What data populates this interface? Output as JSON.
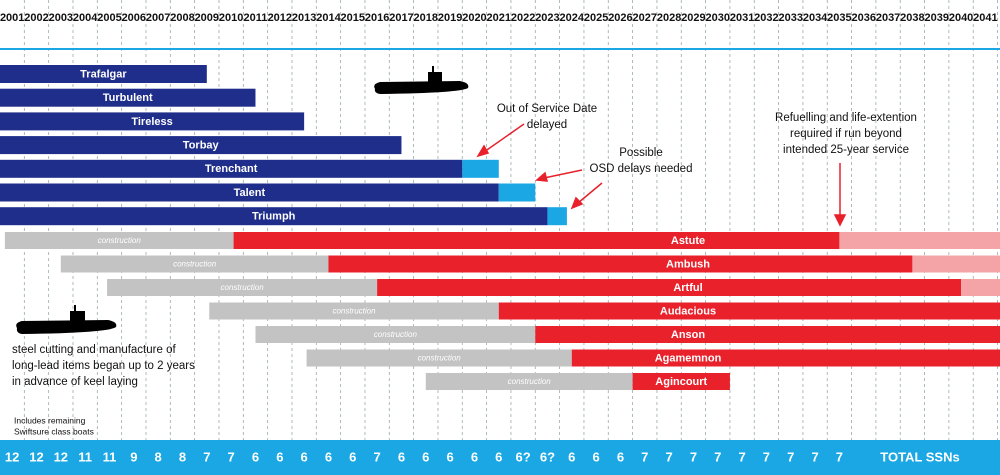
{
  "chart_data": {
    "type": "timeline",
    "xlim": [
      2000.5,
      2041.6
    ],
    "xticks": [
      2001,
      2002,
      2003,
      2004,
      2005,
      2006,
      2007,
      2008,
      2009,
      2010,
      2011,
      2012,
      2013,
      2014,
      2015,
      2016,
      2017,
      2018,
      2019,
      2020,
      2021,
      2022,
      2023,
      2024,
      2025,
      2026,
      2027,
      2028,
      2029,
      2030,
      2031,
      2032,
      2033,
      2034,
      2035,
      2036,
      2037,
      2038,
      2039,
      2040,
      2041
    ],
    "grid": true,
    "colors": {
      "in_service": "#1f2e8a",
      "delay": "#1aa7e4",
      "construction": "#c3c3c3",
      "service": "#e8212b",
      "extension": "#f4a3a6",
      "totals_band": "#1aa7e4"
    },
    "in_service": [
      {
        "name": "Trafalgar",
        "start": 2000.5,
        "end": 2009
      },
      {
        "name": "Turbulent",
        "start": 2000.5,
        "end": 2011
      },
      {
        "name": "Tireless",
        "start": 2000.5,
        "end": 2013
      },
      {
        "name": "Torbay",
        "start": 2000.5,
        "end": 2017
      },
      {
        "name": "Trenchant",
        "start": 2000.5,
        "end": 2019.5,
        "delay_end": 2021
      },
      {
        "name": "Talent",
        "start": 2000.5,
        "end": 2021,
        "delay_end": 2022.5
      },
      {
        "name": "Triumph",
        "start": 2000.5,
        "end": 2023,
        "delay_end": 2023.8
      }
    ],
    "construction_label": "construction",
    "new_boats": [
      {
        "name": "Astute",
        "construction_start": 2000.7,
        "service_start": 2010.1,
        "service_end": 2035,
        "extension_end": 2041.6
      },
      {
        "name": "Ambush",
        "construction_start": 2003,
        "service_start": 2014,
        "service_end": 2038,
        "extension_end": 2041.6
      },
      {
        "name": "Artful",
        "construction_start": 2004.9,
        "service_start": 2016,
        "service_end": 2040,
        "extension_end": 2041.6
      },
      {
        "name": "Audacious",
        "construction_start": 2009.1,
        "service_start": 2021,
        "service_end": 2041.6
      },
      {
        "name": "Anson",
        "construction_start": 2011,
        "service_start": 2022.5,
        "service_end": 2041.6
      },
      {
        "name": "Agamemnon",
        "construction_start": 2013.1,
        "service_start": 2024,
        "service_end": 2041.6
      },
      {
        "name": "Agincourt",
        "construction_start": 2018,
        "service_start": 2026.5,
        "service_end": 2030.5
      }
    ],
    "totals": [
      12,
      12,
      12,
      11,
      11,
      9,
      8,
      8,
      7,
      7,
      6,
      6,
      6,
      6,
      6,
      7,
      6,
      6,
      6,
      6,
      6,
      "6?",
      "6?",
      6,
      6,
      6,
      7,
      7,
      7,
      7,
      7,
      7,
      7,
      7,
      7
    ],
    "totals_title": "TOTAL SSNs",
    "annotations": {
      "osd_delayed": [
        "Out of Service Date",
        "delayed"
      ],
      "possible_delays": [
        "Possible",
        "OSD delays needed"
      ],
      "refuelling": [
        "Refuelling and life-extention",
        "required if run beyond",
        "intended 25-year service"
      ],
      "steel_cutting": [
        "steel cutting and manufacture of",
        "long-lead items began up to 2 years",
        "in advance of keel laying"
      ],
      "swiftsure": [
        "Includes remaining",
        "Swiftsure class boats"
      ]
    }
  }
}
